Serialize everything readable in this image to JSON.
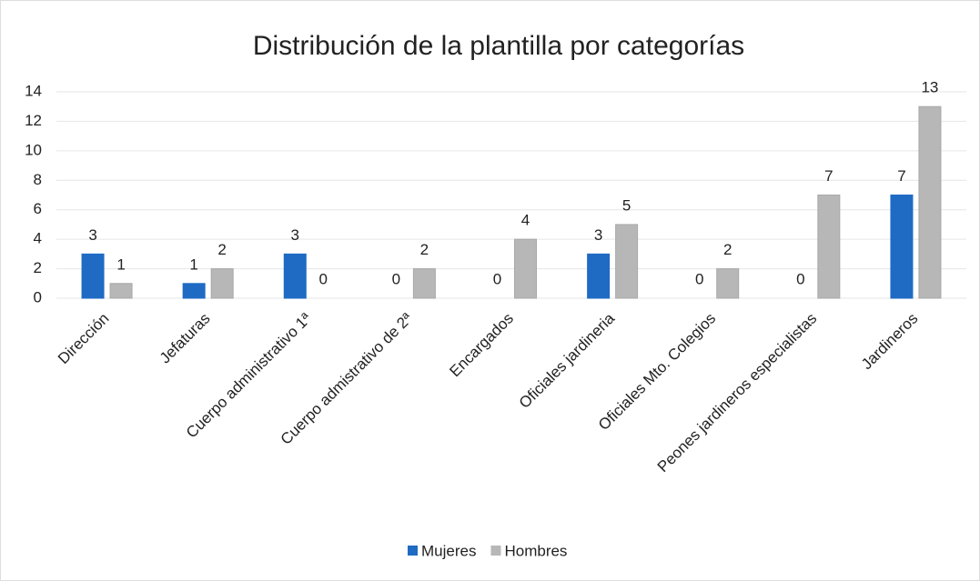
{
  "chart_data": {
    "type": "bar",
    "title": "Distribución de la plantilla por categorías",
    "categories": [
      "Dirección",
      "Jefaturas",
      "Cuerpo administrativo 1ª",
      "Cuerpo admistrativo de 2ª",
      "Encargados",
      "Oficiales jardineria",
      "Oficiales Mto. Colegios",
      "Peones jardineros especialistas",
      "Jardineros"
    ],
    "series": [
      {
        "name": "Mujeres",
        "color": "#1f6bc4",
        "values": [
          3,
          1,
          3,
          0,
          0,
          3,
          0,
          0,
          7
        ]
      },
      {
        "name": "Hombres",
        "color": "#b7b7b7",
        "values": [
          1,
          2,
          0,
          2,
          4,
          5,
          2,
          7,
          13
        ]
      }
    ],
    "ylim": [
      0,
      14
    ],
    "yticks": [
      0,
      2,
      4,
      6,
      8,
      10,
      12,
      14
    ],
    "grid": true,
    "legend": "bottom"
  }
}
